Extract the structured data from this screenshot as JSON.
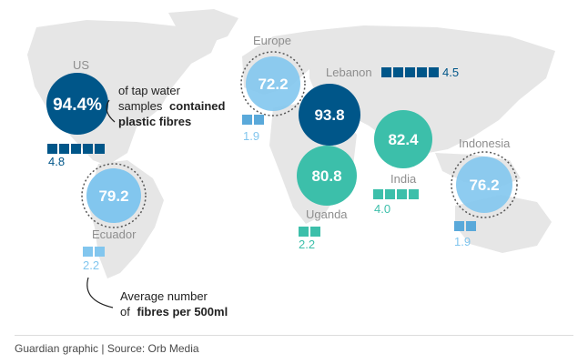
{
  "colors": {
    "map_land": "#e6e6e6",
    "dark_blue": "#005689",
    "light_blue": "#82c6ee",
    "sky_blue": "#5aa9da",
    "teal": "#3cbfaa",
    "label_grey": "#8e8e8e",
    "dashed_ring": "#555555"
  },
  "legend": {
    "us_note": [
      "of tap water",
      "samples",
      "contained",
      "plastic fibres"
    ],
    "fibres_note": [
      "Average number",
      "of",
      "fibres per 500ml"
    ]
  },
  "regions": [
    {
      "name": "US",
      "tap_percent": "94.4%",
      "fibres": "4.8",
      "color": "dark_blue",
      "squares": 5
    },
    {
      "name": "Europe",
      "tap_percent": "72.2",
      "fibres": "1.9",
      "color": "sky_blue",
      "squares": 2
    },
    {
      "name": "Lebanon",
      "tap_percent": "93.8",
      "fibres": "4.5",
      "color": "dark_blue",
      "squares": 5
    },
    {
      "name": "India",
      "tap_percent": "82.4",
      "fibres": "4.0",
      "color": "teal",
      "squares": 4
    },
    {
      "name": "Indonesia",
      "tap_percent": "76.2",
      "fibres": "1.9",
      "color": "sky_blue",
      "squares": 2
    },
    {
      "name": "Uganda",
      "tap_percent": "80.8",
      "fibres": "2.2",
      "color": "teal",
      "squares": 2
    },
    {
      "name": "Ecuador",
      "tap_percent": "79.2",
      "fibres": "2.2",
      "color": "light_blue",
      "squares": 2
    }
  ],
  "footer": "Guardian graphic | Source: Orb Media"
}
